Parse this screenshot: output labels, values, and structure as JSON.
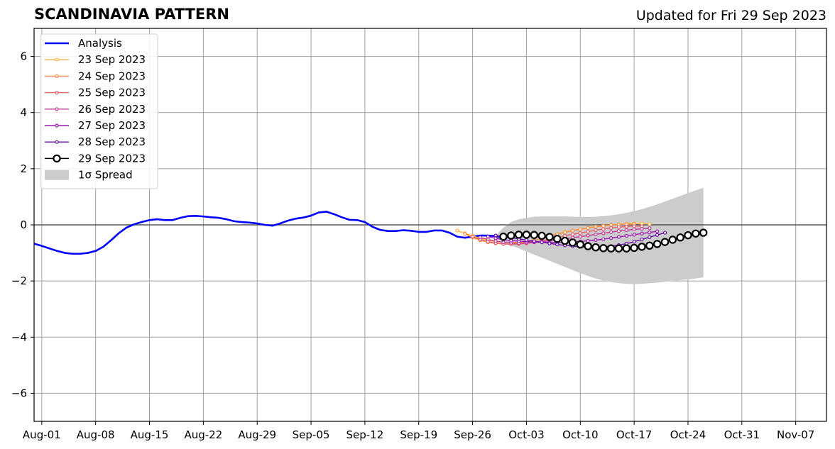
{
  "header": {
    "title": "SCANDINAVIA PATTERN",
    "updated": "Updated for Fri 29 Sep 2023"
  },
  "chart_data": {
    "type": "line",
    "title": "SCANDINAVIA PATTERN",
    "subtitle": "Updated for Fri 29 Sep 2023",
    "xlabel": "",
    "ylabel": "",
    "xlim": [
      "2023-07-31",
      "2023-11-11"
    ],
    "ylim": [
      -7,
      7
    ],
    "grid": true,
    "legend_position": "top-left",
    "x_ticks": [
      "Aug-01",
      "Aug-08",
      "Aug-15",
      "Aug-22",
      "Aug-29",
      "Sep-05",
      "Sep-12",
      "Sep-19",
      "Sep-26",
      "Oct-03",
      "Oct-10",
      "Oct-17",
      "Oct-24",
      "Oct-31",
      "Nov-07"
    ],
    "y_ticks": [
      "6",
      "4",
      "2",
      "0",
      "−2",
      "−4",
      "−6"
    ],
    "y_tick_values": [
      6,
      4,
      2,
      0,
      -2,
      -4,
      -6
    ],
    "legend": [
      {
        "label": "Analysis",
        "color": "#0000ff",
        "kind": "thick-line"
      },
      {
        "label": "23 Sep 2023",
        "color": "#fdb241",
        "kind": "line-marker"
      },
      {
        "label": "24 Sep 2023",
        "color": "#f68d45",
        "kind": "line-marker"
      },
      {
        "label": "25 Sep 2023",
        "color": "#e3616f",
        "kind": "line-marker"
      },
      {
        "label": "26 Sep 2023",
        "color": "#c23b97",
        "kind": "line-marker"
      },
      {
        "label": "27 Sep 2023",
        "color": "#9b17b1",
        "kind": "line-marker"
      },
      {
        "label": "28 Sep 2023",
        "color": "#6a0ca9",
        "kind": "line-marker"
      },
      {
        "label": "29 Sep 2023",
        "color": "#000000",
        "kind": "big-marker"
      },
      {
        "label": "1σ Spread",
        "color": "#cccccc",
        "kind": "patch"
      }
    ],
    "analysis": {
      "name": "Analysis",
      "color": "#0000ff",
      "dates": [
        "2023-07-31",
        "2023-08-01",
        "2023-08-02",
        "2023-08-03",
        "2023-08-04",
        "2023-08-05",
        "2023-08-06",
        "2023-08-07",
        "2023-08-08",
        "2023-08-09",
        "2023-08-10",
        "2023-08-11",
        "2023-08-12",
        "2023-08-13",
        "2023-08-14",
        "2023-08-15",
        "2023-08-16",
        "2023-08-17",
        "2023-08-18",
        "2023-08-19",
        "2023-08-20",
        "2023-08-21",
        "2023-08-22",
        "2023-08-23",
        "2023-08-24",
        "2023-08-25",
        "2023-08-26",
        "2023-08-27",
        "2023-08-28",
        "2023-08-29",
        "2023-08-30",
        "2023-08-31",
        "2023-09-01",
        "2023-09-02",
        "2023-09-03",
        "2023-09-04",
        "2023-09-05",
        "2023-09-06",
        "2023-09-07",
        "2023-09-08",
        "2023-09-09",
        "2023-09-10",
        "2023-09-11",
        "2023-09-12",
        "2023-09-13",
        "2023-09-14",
        "2023-09-15",
        "2023-09-16",
        "2023-09-17",
        "2023-09-18",
        "2023-09-19",
        "2023-09-20",
        "2023-09-21",
        "2023-09-22",
        "2023-09-23",
        "2023-09-24",
        "2023-09-25",
        "2023-09-26",
        "2023-09-27",
        "2023-09-28",
        "2023-09-29",
        "2023-09-30"
      ],
      "values": [
        -0.67,
        -0.75,
        -0.84,
        -0.93,
        -1.0,
        -1.03,
        -1.03,
        -1.0,
        -0.93,
        -0.78,
        -0.55,
        -0.3,
        -0.1,
        0.02,
        0.1,
        0.17,
        0.2,
        0.17,
        0.17,
        0.25,
        0.31,
        0.32,
        0.3,
        0.27,
        0.25,
        0.2,
        0.13,
        0.1,
        0.08,
        0.05,
        0.0,
        -0.03,
        0.05,
        0.15,
        0.22,
        0.26,
        0.33,
        0.44,
        0.47,
        0.38,
        0.27,
        0.18,
        0.17,
        0.1,
        -0.07,
        -0.18,
        -0.22,
        -0.22,
        -0.19,
        -0.21,
        -0.25,
        -0.25,
        -0.2,
        -0.2,
        -0.28,
        -0.42,
        -0.46,
        -0.42,
        -0.38,
        -0.38,
        -0.4,
        -0.45
      ]
    },
    "forecasts": [
      {
        "name": "23 Sep 2023",
        "color": "#fdb241",
        "start": "2023-09-24",
        "values": [
          -0.2,
          -0.3,
          -0.39,
          -0.48,
          -0.55,
          -0.6,
          -0.62,
          -0.63,
          -0.62,
          -0.6,
          -0.55,
          -0.48,
          -0.4,
          -0.32,
          -0.25,
          -0.2,
          -0.15,
          -0.1,
          -0.06,
          -0.03,
          0.0,
          0.02,
          0.04,
          0.05,
          0.05,
          0.03
        ]
      },
      {
        "name": "24 Sep 2023",
        "color": "#f68d45",
        "start": "2023-09-25",
        "values": [
          -0.32,
          -0.45,
          -0.55,
          -0.62,
          -0.66,
          -0.68,
          -0.68,
          -0.66,
          -0.62,
          -0.56,
          -0.48,
          -0.4,
          -0.33,
          -0.27,
          -0.21,
          -0.16,
          -0.11,
          -0.07,
          -0.04,
          -0.01,
          0.01,
          0.02,
          0.02
        ]
      },
      {
        "name": "25 Sep 2023",
        "color": "#e3616f",
        "start": "2023-09-26",
        "values": [
          -0.42,
          -0.52,
          -0.6,
          -0.65,
          -0.68,
          -0.69,
          -0.68,
          -0.66,
          -0.62,
          -0.57,
          -0.51,
          -0.45,
          -0.39,
          -0.34,
          -0.29,
          -0.24,
          -0.19,
          -0.15,
          -0.11,
          -0.08,
          -0.06,
          -0.05,
          -0.05
        ]
      },
      {
        "name": "26 Sep 2023",
        "color": "#c23b97",
        "start": "2023-09-27",
        "values": [
          -0.45,
          -0.52,
          -0.58,
          -0.62,
          -0.64,
          -0.65,
          -0.64,
          -0.62,
          -0.6,
          -0.57,
          -0.54,
          -0.5,
          -0.46,
          -0.42,
          -0.38,
          -0.34,
          -0.3,
          -0.26,
          -0.22,
          -0.19,
          -0.16,
          -0.14,
          -0.12
        ]
      },
      {
        "name": "27 Sep 2023",
        "color": "#9b17b1",
        "start": "2023-09-28",
        "values": [
          -0.42,
          -0.48,
          -0.53,
          -0.56,
          -0.58,
          -0.6,
          -0.61,
          -0.62,
          -0.63,
          -0.63,
          -0.62,
          -0.61,
          -0.59,
          -0.57,
          -0.54,
          -0.51,
          -0.47,
          -0.43,
          -0.39,
          -0.35,
          -0.31,
          -0.27,
          -0.23
        ]
      },
      {
        "name": "28 Sep 2023",
        "color": "#6a0ca9",
        "start": "2023-09-29",
        "values": [
          -0.38,
          -0.42,
          -0.46,
          -0.5,
          -0.54,
          -0.58,
          -0.62,
          -0.66,
          -0.7,
          -0.73,
          -0.76,
          -0.78,
          -0.79,
          -0.79,
          -0.78,
          -0.76,
          -0.72,
          -0.67,
          -0.6,
          -0.52,
          -0.44,
          -0.36,
          -0.28
        ]
      }
    ],
    "latest_forecast": {
      "name": "29 Sep 2023",
      "color": "#000000",
      "start": "2023-09-30",
      "values": [
        -0.42,
        -0.38,
        -0.35,
        -0.35,
        -0.36,
        -0.39,
        -0.43,
        -0.5,
        -0.57,
        -0.63,
        -0.7,
        -0.76,
        -0.8,
        -0.83,
        -0.84,
        -0.84,
        -0.84,
        -0.82,
        -0.78,
        -0.74,
        -0.68,
        -0.61,
        -0.53,
        -0.45,
        -0.37,
        -0.31,
        -0.28
      ]
    },
    "spread": {
      "name": "1σ Spread",
      "color": "#cccccc",
      "start": "2023-09-29",
      "upper": [
        -0.38,
        -0.1,
        0.1,
        0.2,
        0.25,
        0.29,
        0.3,
        0.3,
        0.3,
        0.3,
        0.29,
        0.28,
        0.28,
        0.29,
        0.31,
        0.34,
        0.38,
        0.43,
        0.49,
        0.56,
        0.64,
        0.73,
        0.83,
        0.93,
        1.03,
        1.13,
        1.23,
        1.32
      ],
      "lower": [
        -0.52,
        -0.62,
        -0.73,
        -0.84,
        -0.95,
        -1.06,
        -1.17,
        -1.28,
        -1.39,
        -1.5,
        -1.61,
        -1.72,
        -1.82,
        -1.91,
        -1.98,
        -2.04,
        -2.08,
        -2.1,
        -2.11,
        -2.1,
        -2.08,
        -2.06,
        -2.03,
        -2.0,
        -1.97,
        -1.94,
        -1.91,
        -1.87
      ]
    }
  }
}
